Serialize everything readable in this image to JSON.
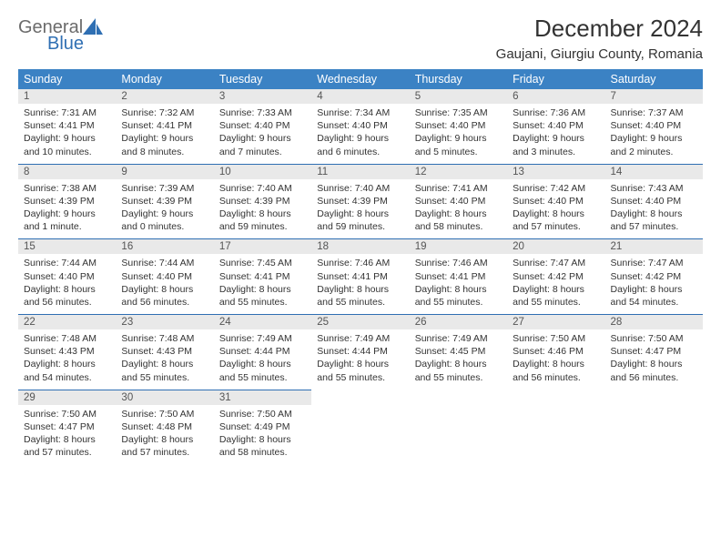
{
  "brand": {
    "name_top": "General",
    "name_bottom": "Blue"
  },
  "title": "December 2024",
  "location": "Gaujani, Giurgiu County, Romania",
  "colors": {
    "header_bg": "#3b82c4",
    "header_text": "#ffffff",
    "daynum_bg": "#e9e9e9",
    "rule": "#2f6fb3",
    "body_text": "#333333",
    "logo_gray": "#6b6b6b",
    "logo_blue": "#2f6fb3",
    "page_bg": "#ffffff"
  },
  "weekdays": [
    "Sunday",
    "Monday",
    "Tuesday",
    "Wednesday",
    "Thursday",
    "Friday",
    "Saturday"
  ],
  "weeks": [
    [
      {
        "n": "1",
        "sunrise": "7:31 AM",
        "sunset": "4:41 PM",
        "daylight": "9 hours and 10 minutes."
      },
      {
        "n": "2",
        "sunrise": "7:32 AM",
        "sunset": "4:41 PM",
        "daylight": "9 hours and 8 minutes."
      },
      {
        "n": "3",
        "sunrise": "7:33 AM",
        "sunset": "4:40 PM",
        "daylight": "9 hours and 7 minutes."
      },
      {
        "n": "4",
        "sunrise": "7:34 AM",
        "sunset": "4:40 PM",
        "daylight": "9 hours and 6 minutes."
      },
      {
        "n": "5",
        "sunrise": "7:35 AM",
        "sunset": "4:40 PM",
        "daylight": "9 hours and 5 minutes."
      },
      {
        "n": "6",
        "sunrise": "7:36 AM",
        "sunset": "4:40 PM",
        "daylight": "9 hours and 3 minutes."
      },
      {
        "n": "7",
        "sunrise": "7:37 AM",
        "sunset": "4:40 PM",
        "daylight": "9 hours and 2 minutes."
      }
    ],
    [
      {
        "n": "8",
        "sunrise": "7:38 AM",
        "sunset": "4:39 PM",
        "daylight": "9 hours and 1 minute."
      },
      {
        "n": "9",
        "sunrise": "7:39 AM",
        "sunset": "4:39 PM",
        "daylight": "9 hours and 0 minutes."
      },
      {
        "n": "10",
        "sunrise": "7:40 AM",
        "sunset": "4:39 PM",
        "daylight": "8 hours and 59 minutes."
      },
      {
        "n": "11",
        "sunrise": "7:40 AM",
        "sunset": "4:39 PM",
        "daylight": "8 hours and 59 minutes."
      },
      {
        "n": "12",
        "sunrise": "7:41 AM",
        "sunset": "4:40 PM",
        "daylight": "8 hours and 58 minutes."
      },
      {
        "n": "13",
        "sunrise": "7:42 AM",
        "sunset": "4:40 PM",
        "daylight": "8 hours and 57 minutes."
      },
      {
        "n": "14",
        "sunrise": "7:43 AM",
        "sunset": "4:40 PM",
        "daylight": "8 hours and 57 minutes."
      }
    ],
    [
      {
        "n": "15",
        "sunrise": "7:44 AM",
        "sunset": "4:40 PM",
        "daylight": "8 hours and 56 minutes."
      },
      {
        "n": "16",
        "sunrise": "7:44 AM",
        "sunset": "4:40 PM",
        "daylight": "8 hours and 56 minutes."
      },
      {
        "n": "17",
        "sunrise": "7:45 AM",
        "sunset": "4:41 PM",
        "daylight": "8 hours and 55 minutes."
      },
      {
        "n": "18",
        "sunrise": "7:46 AM",
        "sunset": "4:41 PM",
        "daylight": "8 hours and 55 minutes."
      },
      {
        "n": "19",
        "sunrise": "7:46 AM",
        "sunset": "4:41 PM",
        "daylight": "8 hours and 55 minutes."
      },
      {
        "n": "20",
        "sunrise": "7:47 AM",
        "sunset": "4:42 PM",
        "daylight": "8 hours and 55 minutes."
      },
      {
        "n": "21",
        "sunrise": "7:47 AM",
        "sunset": "4:42 PM",
        "daylight": "8 hours and 54 minutes."
      }
    ],
    [
      {
        "n": "22",
        "sunrise": "7:48 AM",
        "sunset": "4:43 PM",
        "daylight": "8 hours and 54 minutes."
      },
      {
        "n": "23",
        "sunrise": "7:48 AM",
        "sunset": "4:43 PM",
        "daylight": "8 hours and 55 minutes."
      },
      {
        "n": "24",
        "sunrise": "7:49 AM",
        "sunset": "4:44 PM",
        "daylight": "8 hours and 55 minutes."
      },
      {
        "n": "25",
        "sunrise": "7:49 AM",
        "sunset": "4:44 PM",
        "daylight": "8 hours and 55 minutes."
      },
      {
        "n": "26",
        "sunrise": "7:49 AM",
        "sunset": "4:45 PM",
        "daylight": "8 hours and 55 minutes."
      },
      {
        "n": "27",
        "sunrise": "7:50 AM",
        "sunset": "4:46 PM",
        "daylight": "8 hours and 56 minutes."
      },
      {
        "n": "28",
        "sunrise": "7:50 AM",
        "sunset": "4:47 PM",
        "daylight": "8 hours and 56 minutes."
      }
    ],
    [
      {
        "n": "29",
        "sunrise": "7:50 AM",
        "sunset": "4:47 PM",
        "daylight": "8 hours and 57 minutes."
      },
      {
        "n": "30",
        "sunrise": "7:50 AM",
        "sunset": "4:48 PM",
        "daylight": "8 hours and 57 minutes."
      },
      {
        "n": "31",
        "sunrise": "7:50 AM",
        "sunset": "4:49 PM",
        "daylight": "8 hours and 58 minutes."
      },
      null,
      null,
      null,
      null
    ]
  ],
  "labels": {
    "sunrise": "Sunrise:",
    "sunset": "Sunset:",
    "daylight": "Daylight:"
  }
}
